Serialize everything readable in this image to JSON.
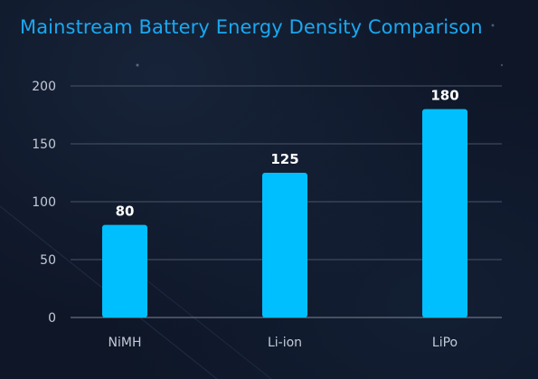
{
  "chart_data": {
    "type": "bar",
    "title": "Mainstream Battery Energy Density Comparison",
    "categories": [
      "NiMH",
      "Li-ion",
      "LiPo"
    ],
    "values": [
      80,
      125,
      180
    ],
    "ylim": [
      0,
      200
    ],
    "yticks": [
      0,
      50,
      100,
      150,
      200
    ],
    "grid": true,
    "data_labels": true,
    "bar_color": "#00bfff",
    "grid_color": "#4a5466",
    "background_color": "#0e1627",
    "title_color": "#1aa8f0"
  }
}
